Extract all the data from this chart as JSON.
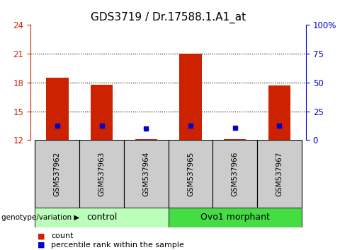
{
  "title": "GDS3719 / Dr.17588.1.A1_at",
  "samples": [
    "GSM537962",
    "GSM537963",
    "GSM537964",
    "GSM537965",
    "GSM537966",
    "GSM537967"
  ],
  "red_bar_tops": [
    18.5,
    17.8,
    12.1,
    21.0,
    12.1,
    17.7
  ],
  "blue_marker_y": [
    13.5,
    13.5,
    13.2,
    13.5,
    13.3,
    13.5
  ],
  "bar_base": 12,
  "ylim": [
    12,
    24
  ],
  "yticks_left": [
    12,
    15,
    18,
    21,
    24
  ],
  "yticks_right": [
    0,
    25,
    50,
    75,
    100
  ],
  "ytick_labels_right": [
    "0",
    "25",
    "50",
    "75",
    "100%"
  ],
  "groups": [
    {
      "label": "control",
      "color": "#bbffbb",
      "start": 0,
      "end": 2
    },
    {
      "label": "Ovo1 morphant",
      "color": "#44dd44",
      "start": 3,
      "end": 5
    }
  ],
  "red_color": "#cc2200",
  "blue_color": "#0000cc",
  "group_label": "genotype/variation",
  "legend_count": "count",
  "legend_percentile": "percentile rank within the sample",
  "bar_width": 0.5,
  "bg_plot": "#ffffff",
  "bg_sample_label": "#cccccc",
  "title_fontsize": 11,
  "tick_fontsize": 8.5,
  "sample_label_fontsize": 7.5,
  "group_fontsize": 9
}
